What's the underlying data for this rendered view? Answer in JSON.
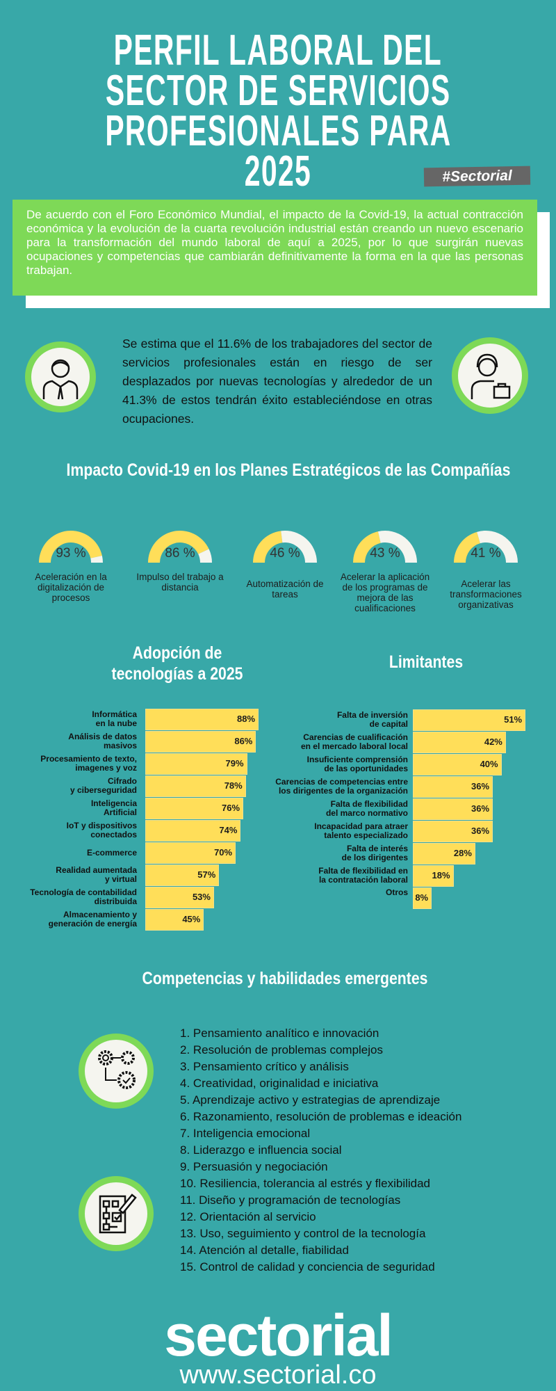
{
  "title": {
    "lines": [
      "PERFIL LABORAL DEL",
      "SECTOR DE SERVICIOS",
      "PROFESIONALES PARA",
      "2025"
    ],
    "badge": "#Sectorial"
  },
  "intro": "De acuerdo con el Foro Económico Mundial, el impacto de la Covid-19, la actual contracción económica y la evolución de la cuarta revolución industrial están creando un nuevo escenario para la transformación del mundo laboral de aquí a 2025, por lo que surgirán nuevas ocupaciones y competencias que cambiarán definitivamente la forma en la que las personas trabajan.",
  "stat": "Se estima que el 11.6% de los trabajadores del sector de servicios profesionales están en riesgo de ser desplazados por nuevas tecnologías y alrededor de un 41.3% de estos tendrán éxito estableciéndose en otras ocupaciones.",
  "icons": [
    "businessman-icon",
    "worker-with-briefcase-icon",
    "gears-process-icon",
    "flowchart-pencil-icon"
  ],
  "colors": {
    "background": "#38a8a8",
    "green": "#7ed957",
    "yellow": "#ffde59",
    "light": "#f5f5ef"
  },
  "impact": {
    "heading": "Impacto Covid-19 en los Planes Estratégicos de las Compañías",
    "gauges": [
      {
        "value": 93,
        "label_text": "93 %",
        "label": "Aceleración en la digitalización de procesos"
      },
      {
        "value": 86,
        "label_text": "86 %",
        "label": "Impulso del trabajo a distancia"
      },
      {
        "value": 46,
        "label_text": "46 %",
        "label": "Automatización de tareas"
      },
      {
        "value": 43,
        "label_text": "43 %",
        "label": "Acelerar la aplicación de los programas de mejora de las cualificaciones"
      },
      {
        "value": 41,
        "label_text": "41 %",
        "label": "Acelerar las transformaciones organizativas"
      }
    ]
  },
  "chart_data": [
    {
      "type": "bar",
      "orientation": "horizontal",
      "title": "Adopción de tecnologías a 2025",
      "categories": [
        "Informática\nen la nube",
        "Análisis de datos\nmasivos",
        "Procesamiento de texto,\nimagenes y voz",
        "Cifrado\ny ciberseguridad",
        "Inteligencia\nArtificial",
        "IoT y dispositivos\nconectados",
        "E-commerce",
        "Realidad aumentada\ny virtual",
        "Tecnología de contabilidad\ndistribuida",
        "Almacenamiento y\ngeneración de energía"
      ],
      "values": [
        88,
        86,
        79,
        78,
        76,
        74,
        70,
        57,
        53,
        45
      ],
      "value_labels": [
        "88%",
        "86%",
        "79%",
        "78%",
        "76%",
        "74%",
        "70%",
        "57%",
        "53%",
        "45%"
      ]
    },
    {
      "type": "bar",
      "orientation": "horizontal",
      "title": "Limitantes",
      "categories": [
        "Falta de inversión\nde capital",
        "Carencias de cualificación\nen el mercado laboral local",
        "Insuficiente comprensión\nde las oportunidades",
        "Carencias de competencias entre\nlos dirigentes de la organización",
        "Falta de flexibilidad\ndel marco normativo",
        "Incapacidad para atraer\ntalento especializado",
        "Falta de interés\nde los dirigentes",
        "Falta de flexibilidad en\nla contratación laboral",
        "Otros"
      ],
      "values": [
        51,
        42,
        40,
        36,
        36,
        36,
        28,
        18,
        8
      ],
      "value_labels": [
        "51%",
        "42%",
        "40%",
        "36%",
        "36%",
        "36%",
        "28%",
        "18%",
        "8%"
      ]
    }
  ],
  "skills": {
    "heading": "Competencias y habilidades emergentes",
    "items": [
      "1. Pensamiento analítico e innovación",
      "2. Resolución de problemas complejos",
      "3. Pensamiento crítico y análisis",
      "4. Creatividad, originalidad e iniciativa",
      "5. Aprendizaje activo y estrategias de aprendizaje",
      "6. Razonamiento, resolución de problemas e ideación",
      "7. Inteligencia emocional",
      "8. Liderazgo e influencia social",
      "9. Persuasión y negociación",
      "10. Resiliencia, tolerancia al estrés y flexibilidad",
      "11. Diseño y programación de tecnologías",
      "12. Orientación al servicio",
      "13. Uso, seguimiento y control de la tecnología",
      "14. Atención al detalle, fiabilidad",
      "15. Control de calidad y conciencia de seguridad"
    ]
  },
  "footer": {
    "logo": "sectorial",
    "url": "www.sectorial.co"
  }
}
